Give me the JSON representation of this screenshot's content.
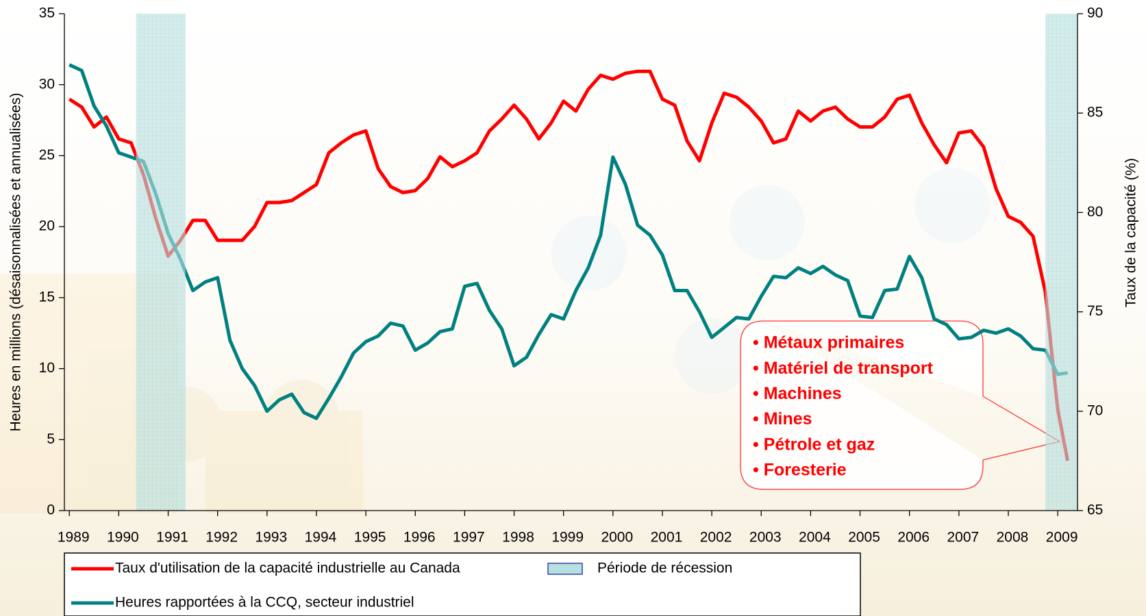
{
  "chart_data": {
    "type": "line",
    "y_label": "Heures en millions (désaisonnalisées et annualisées)",
    "y2_label": "Taux de la capacité (%)",
    "x": [
      1989,
      1989.25,
      1989.5,
      1989.75,
      1990,
      1990.25,
      1990.5,
      1990.75,
      1991,
      1991.25,
      1991.5,
      1991.75,
      1992,
      1992.25,
      1992.5,
      1992.75,
      1993,
      1993.25,
      1993.5,
      1993.75,
      1994,
      1994.25,
      1994.5,
      1994.75,
      1995,
      1995.25,
      1995.5,
      1995.75,
      1996,
      1996.25,
      1996.5,
      1996.75,
      1997,
      1997.25,
      1997.5,
      1997.75,
      1998,
      1998.25,
      1998.5,
      1998.75,
      1999,
      1999.25,
      1999.5,
      1999.75,
      2000,
      2000.25,
      2000.5,
      2000.75,
      2001,
      2001.25,
      2001.5,
      2001.75,
      2002,
      2002.25,
      2002.5,
      2002.75,
      2003,
      2003.25,
      2003.5,
      2003.75,
      2004,
      2004.25,
      2004.5,
      2004.75,
      2005,
      2005.25,
      2005.5,
      2005.75,
      2006,
      2006.25,
      2006.5,
      2006.75,
      2007,
      2007.25,
      2007.5,
      2007.75,
      2008,
      2008.25,
      2008.5,
      2008.75,
      2009,
      2009.2
    ],
    "xlim": [
      1988.9,
      2009.4
    ],
    "xticks": [
      1989,
      1990,
      1991,
      1992,
      1993,
      1994,
      1995,
      1996,
      1997,
      1998,
      1999,
      2000,
      2001,
      2002,
      2003,
      2004,
      2005,
      2006,
      2007,
      2008,
      2009
    ],
    "ylim": [
      0,
      35
    ],
    "yticks": [
      0,
      5,
      10,
      15,
      20,
      25,
      30,
      35
    ],
    "y2lim": [
      65,
      90
    ],
    "y2ticks": [
      65,
      70,
      75,
      80,
      85,
      90
    ],
    "series": [
      {
        "name": "Taux d'utilisation de la capacité industrielle au Canada",
        "color": "#ff0000",
        "axis": "y2",
        "values": [
          85.7,
          85.3,
          84.3,
          84.8,
          83.7,
          83.5,
          81.9,
          79.7,
          77.8,
          78.6,
          79.6,
          79.6,
          78.6,
          78.6,
          78.6,
          79.3,
          80.5,
          80.5,
          80.6,
          81.0,
          81.4,
          83.0,
          83.5,
          83.9,
          84.1,
          82.2,
          81.3,
          81.0,
          81.1,
          81.7,
          82.8,
          82.3,
          82.6,
          83.0,
          84.1,
          84.7,
          85.4,
          84.7,
          83.7,
          84.5,
          85.6,
          85.1,
          86.2,
          86.9,
          86.7,
          87.0,
          87.1,
          87.1,
          85.7,
          85.4,
          83.6,
          82.6,
          84.5,
          86.0,
          85.8,
          85.3,
          84.6,
          83.5,
          83.7,
          85.1,
          84.6,
          85.1,
          85.3,
          84.7,
          84.3,
          84.3,
          84.8,
          85.7,
          85.9,
          84.5,
          83.4,
          82.5,
          84.0,
          84.1,
          83.3,
          81.2,
          79.8,
          79.5,
          78.8,
          76.0,
          70.1,
          67.5
        ]
      },
      {
        "name": "Heures rapportées à la CCQ, secteur industriel",
        "color": "#008080",
        "values": [
          31.4,
          31.0,
          28.5,
          27.1,
          25.2,
          24.9,
          24.6,
          22.3,
          19.5,
          17.7,
          15.5,
          16.1,
          16.4,
          12.0,
          10.0,
          8.8,
          7.0,
          7.8,
          8.2,
          6.9,
          6.5,
          7.9,
          9.4,
          11.1,
          11.9,
          12.3,
          13.2,
          13.0,
          11.3,
          11.8,
          12.6,
          12.8,
          15.8,
          16.0,
          14.1,
          12.8,
          10.2,
          10.8,
          12.4,
          13.8,
          13.5,
          15.5,
          17.1,
          19.4,
          24.9,
          23.0,
          20.1,
          19.4,
          18.0,
          15.5,
          15.5,
          14.0,
          12.2,
          12.9,
          13.6,
          13.5,
          15.1,
          16.5,
          16.4,
          17.1,
          16.7,
          17.2,
          16.6,
          16.2,
          13.7,
          13.6,
          15.5,
          15.6,
          17.9,
          16.4,
          13.5,
          13.1,
          12.1,
          12.2,
          12.7,
          12.5,
          12.8,
          12.3,
          11.4,
          11.3,
          9.6,
          9.7
        ]
      }
    ],
    "recession": {
      "name": "Période de récession",
      "color": "#b7e0e0",
      "periods": [
        [
          1990.35,
          1991.35
        ],
        [
          2008.75,
          2009.4
        ]
      ]
    },
    "annotation": {
      "color": "#ff0000",
      "items": [
        "• Métaux primaires",
        "• Matériel de transport",
        "• Machines",
        "• Mines",
        "• Pétrole et gaz",
        "• Foresterie"
      ]
    }
  }
}
